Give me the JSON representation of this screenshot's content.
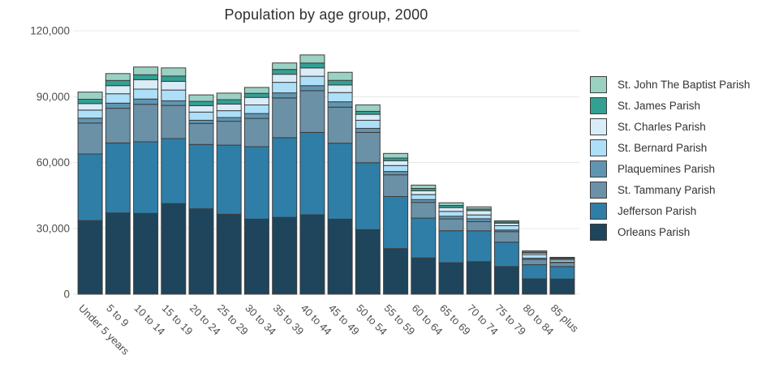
{
  "title": "Population by age group, 2000",
  "colors": {
    "background": "#ffffff",
    "segment_border": "#3d3d3d",
    "gridline": "#e7e7e7",
    "axis_label": "#4f4f4f",
    "title_text": "#2f2f2f",
    "legend_text": "#333333"
  },
  "y_axis": {
    "tick_values": [
      0,
      30000,
      60000,
      90000,
      120000
    ],
    "tick_labels": [
      "0",
      "30,000",
      "60,000",
      "90,000",
      "120,000"
    ]
  },
  "legend": {
    "position": "right",
    "items_top_to_bottom": [
      "St. John The Baptist Parish",
      "St. James Parish",
      "St. Charles Parish",
      "St. Bernard Parish",
      "Plaquemines Parish",
      "St. Tammany Parish",
      "Jefferson Parish",
      "Orleans Parish"
    ]
  },
  "chart_data": {
    "type": "bar",
    "stacked": true,
    "title": "Population by age group, 2000",
    "xlabel": "",
    "ylabel": "",
    "ylim": [
      0,
      120000
    ],
    "yticks": [
      0,
      30000,
      60000,
      90000,
      120000
    ],
    "ytick_labels": [
      "0",
      "30,000",
      "60,000",
      "90,000",
      "120,000"
    ],
    "grid": true,
    "legend_position": "right",
    "categories": [
      "Under 5 years",
      "5 to 9",
      "10 to 14",
      "15 to 19",
      "20 to 24",
      "25 to 29",
      "30 to 34",
      "35 to 39",
      "40 to 44",
      "45 to 49",
      "50 to 54",
      "55 to 59",
      "60 to 64",
      "65 to 69",
      "70 to 74",
      "75 to 79",
      "80 to 84",
      "85 plus"
    ],
    "series": [
      {
        "name": "Orleans Parish",
        "color": "#1f455c",
        "values": [
          33500,
          37000,
          36800,
          41300,
          38900,
          36400,
          34200,
          35000,
          36200,
          34200,
          29400,
          20800,
          16500,
          14300,
          14800,
          12600,
          7000,
          6900
        ]
      },
      {
        "name": "Jefferson Parish",
        "color": "#2e7ea8",
        "values": [
          30400,
          31900,
          32600,
          29600,
          29300,
          31500,
          33000,
          36300,
          37500,
          34600,
          30500,
          23700,
          18200,
          14600,
          14100,
          11100,
          6450,
          5700
        ]
      },
      {
        "name": "St. Tammany Parish",
        "color": "#6b91a7",
        "values": [
          14100,
          15800,
          17100,
          15100,
          9600,
          10900,
          12900,
          18100,
          19000,
          16400,
          13800,
          9900,
          7150,
          5400,
          4200,
          4800,
          2400,
          1800
        ]
      },
      {
        "name": "Plaquemines Parish",
        "color": "#5e96b2",
        "values": [
          2200,
          2300,
          2400,
          2100,
          1450,
          1700,
          2200,
          2300,
          2300,
          2450,
          1850,
          1500,
          1250,
          1250,
          1250,
          750,
          550,
          250
        ]
      },
      {
        "name": "St. Bernard Parish",
        "color": "#aedff8",
        "values": [
          3700,
          4300,
          4500,
          4900,
          3750,
          3100,
          3900,
          4800,
          4300,
          4200,
          3700,
          2700,
          2250,
          2200,
          1750,
          2000,
          1650,
          950
        ]
      },
      {
        "name": "St. Charles Parish",
        "color": "#d9edf8",
        "values": [
          2950,
          3700,
          4300,
          3950,
          2900,
          3000,
          3450,
          3700,
          3800,
          3450,
          2700,
          2200,
          1750,
          1700,
          1950,
          1100,
          750,
          500
        ]
      },
      {
        "name": "St. James Parish",
        "color": "#33a094",
        "values": [
          1950,
          2350,
          2250,
          2450,
          1950,
          2000,
          1850,
          2200,
          2200,
          2100,
          1350,
          1250,
          1100,
          1000,
          750,
          550,
          400,
          300
        ]
      },
      {
        "name": "St. John The Baptist Parish",
        "color": "#9ad1c3",
        "values": [
          3300,
          3150,
          3550,
          3700,
          2950,
          3000,
          2700,
          2950,
          3700,
          3700,
          2950,
          2100,
          1500,
          1200,
          1000,
          550,
          500,
          400
        ]
      }
    ]
  }
}
